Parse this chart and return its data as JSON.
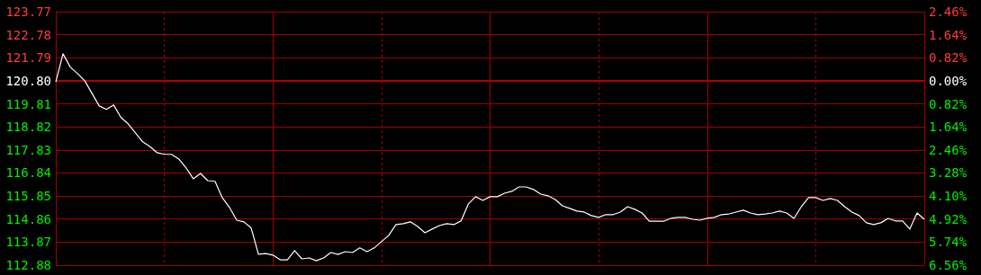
{
  "chart_data": {
    "type": "line",
    "categories": [
      null,
      null,
      null,
      null,
      null,
      null,
      null,
      null,
      null,
      null,
      null,
      null,
      null,
      null,
      null,
      null,
      null,
      null,
      null,
      null,
      null,
      null,
      null,
      null,
      null,
      null,
      null,
      null,
      null,
      null,
      null,
      null,
      null,
      null,
      null,
      null,
      null,
      null,
      null,
      null,
      null,
      null,
      null,
      null,
      null,
      null,
      null,
      null,
      null,
      null,
      null,
      null,
      null,
      null,
      null,
      null,
      null,
      null,
      null,
      null,
      null,
      null,
      null,
      null,
      null,
      null,
      null,
      null,
      null,
      null,
      null,
      null,
      null,
      null,
      null,
      null,
      null,
      null,
      null,
      null,
      null,
      null,
      null,
      null,
      null,
      null,
      null,
      null,
      null,
      null,
      null,
      null,
      null,
      null,
      null,
      null,
      null,
      null,
      null,
      null,
      null,
      null,
      null,
      null,
      null,
      null,
      null,
      null,
      null,
      null,
      null,
      null,
      null,
      null,
      null,
      null,
      null,
      null,
      null,
      null,
      null
    ],
    "series": [
      {
        "color": "#ffffff",
        "values": [
          120.75,
          121.96,
          121.39,
          121.11,
          120.8,
          120.26,
          119.72,
          119.57,
          119.76,
          119.22,
          118.95,
          118.56,
          118.18,
          117.98,
          117.71,
          117.64,
          117.64,
          117.44,
          117.06,
          116.59,
          116.82,
          116.51,
          116.48,
          115.78,
          115.36,
          114.81,
          114.74,
          114.47,
          113.35,
          113.38,
          113.31,
          113.11,
          113.11,
          113.5,
          113.15,
          113.19,
          113.07,
          113.19,
          113.42,
          113.34,
          113.46,
          113.42,
          113.62,
          113.46,
          113.62,
          113.89,
          114.16,
          114.62,
          114.66,
          114.74,
          114.54,
          114.27,
          114.43,
          114.58,
          114.66,
          114.62,
          114.78,
          115.51,
          115.82,
          115.66,
          115.82,
          115.82,
          115.97,
          116.05,
          116.24,
          116.24,
          116.13,
          115.93,
          115.86,
          115.7,
          115.43,
          115.32,
          115.2,
          115.16,
          115.01,
          114.93,
          115.05,
          115.05,
          115.16,
          115.39,
          115.28,
          115.12,
          114.77,
          114.77,
          114.77,
          114.89,
          114.93,
          114.93,
          114.85,
          114.81,
          114.89,
          114.93,
          115.05,
          115.08,
          115.16,
          115.24,
          115.12,
          115.05,
          115.08,
          115.12,
          115.2,
          115.12,
          114.89,
          115.39,
          115.78,
          115.78,
          115.66,
          115.74,
          115.66,
          115.39,
          115.16,
          115.01,
          114.7,
          114.62,
          114.7,
          114.89,
          114.78,
          114.78,
          114.43,
          115.12,
          114.85
        ]
      }
    ],
    "ylim": [
      112.88,
      123.77
    ],
    "yticks": [
      112.88,
      113.87,
      114.86,
      115.85,
      116.84,
      117.83,
      118.82,
      119.81,
      {
        "value": 120.8,
        "label": "120.80"
      },
      121.79,
      122.78,
      123.77
    ],
    "y2lim": [
      -6.56,
      2.46
    ],
    "y2ticks": [
      {
        "value": -6.56,
        "label": "6.56%"
      },
      {
        "value": -5.74,
        "label": "5.74%"
      },
      {
        "value": -4.92,
        "label": "4.92%"
      },
      {
        "value": -4.1,
        "label": "4.10%"
      },
      {
        "value": -3.28,
        "label": "3.28%"
      },
      {
        "value": -2.46,
        "label": "2.46%"
      },
      {
        "value": -1.64,
        "label": "1.64%"
      },
      {
        "value": -0.82,
        "label": "0.82%"
      },
      {
        "value": 0,
        "label": "0.00%"
      },
      {
        "value": 0.82,
        "label": "0.82%"
      },
      {
        "value": 1.64,
        "label": "1.64%"
      },
      {
        "value": 2.46,
        "label": "2.46%"
      }
    ],
    "ref_lines": [
      {
        "axis": "y",
        "value": 120.8,
        "color": "#b00000"
      }
    ],
    "grid": true,
    "marker": "none",
    "line_style": "solid"
  }
}
